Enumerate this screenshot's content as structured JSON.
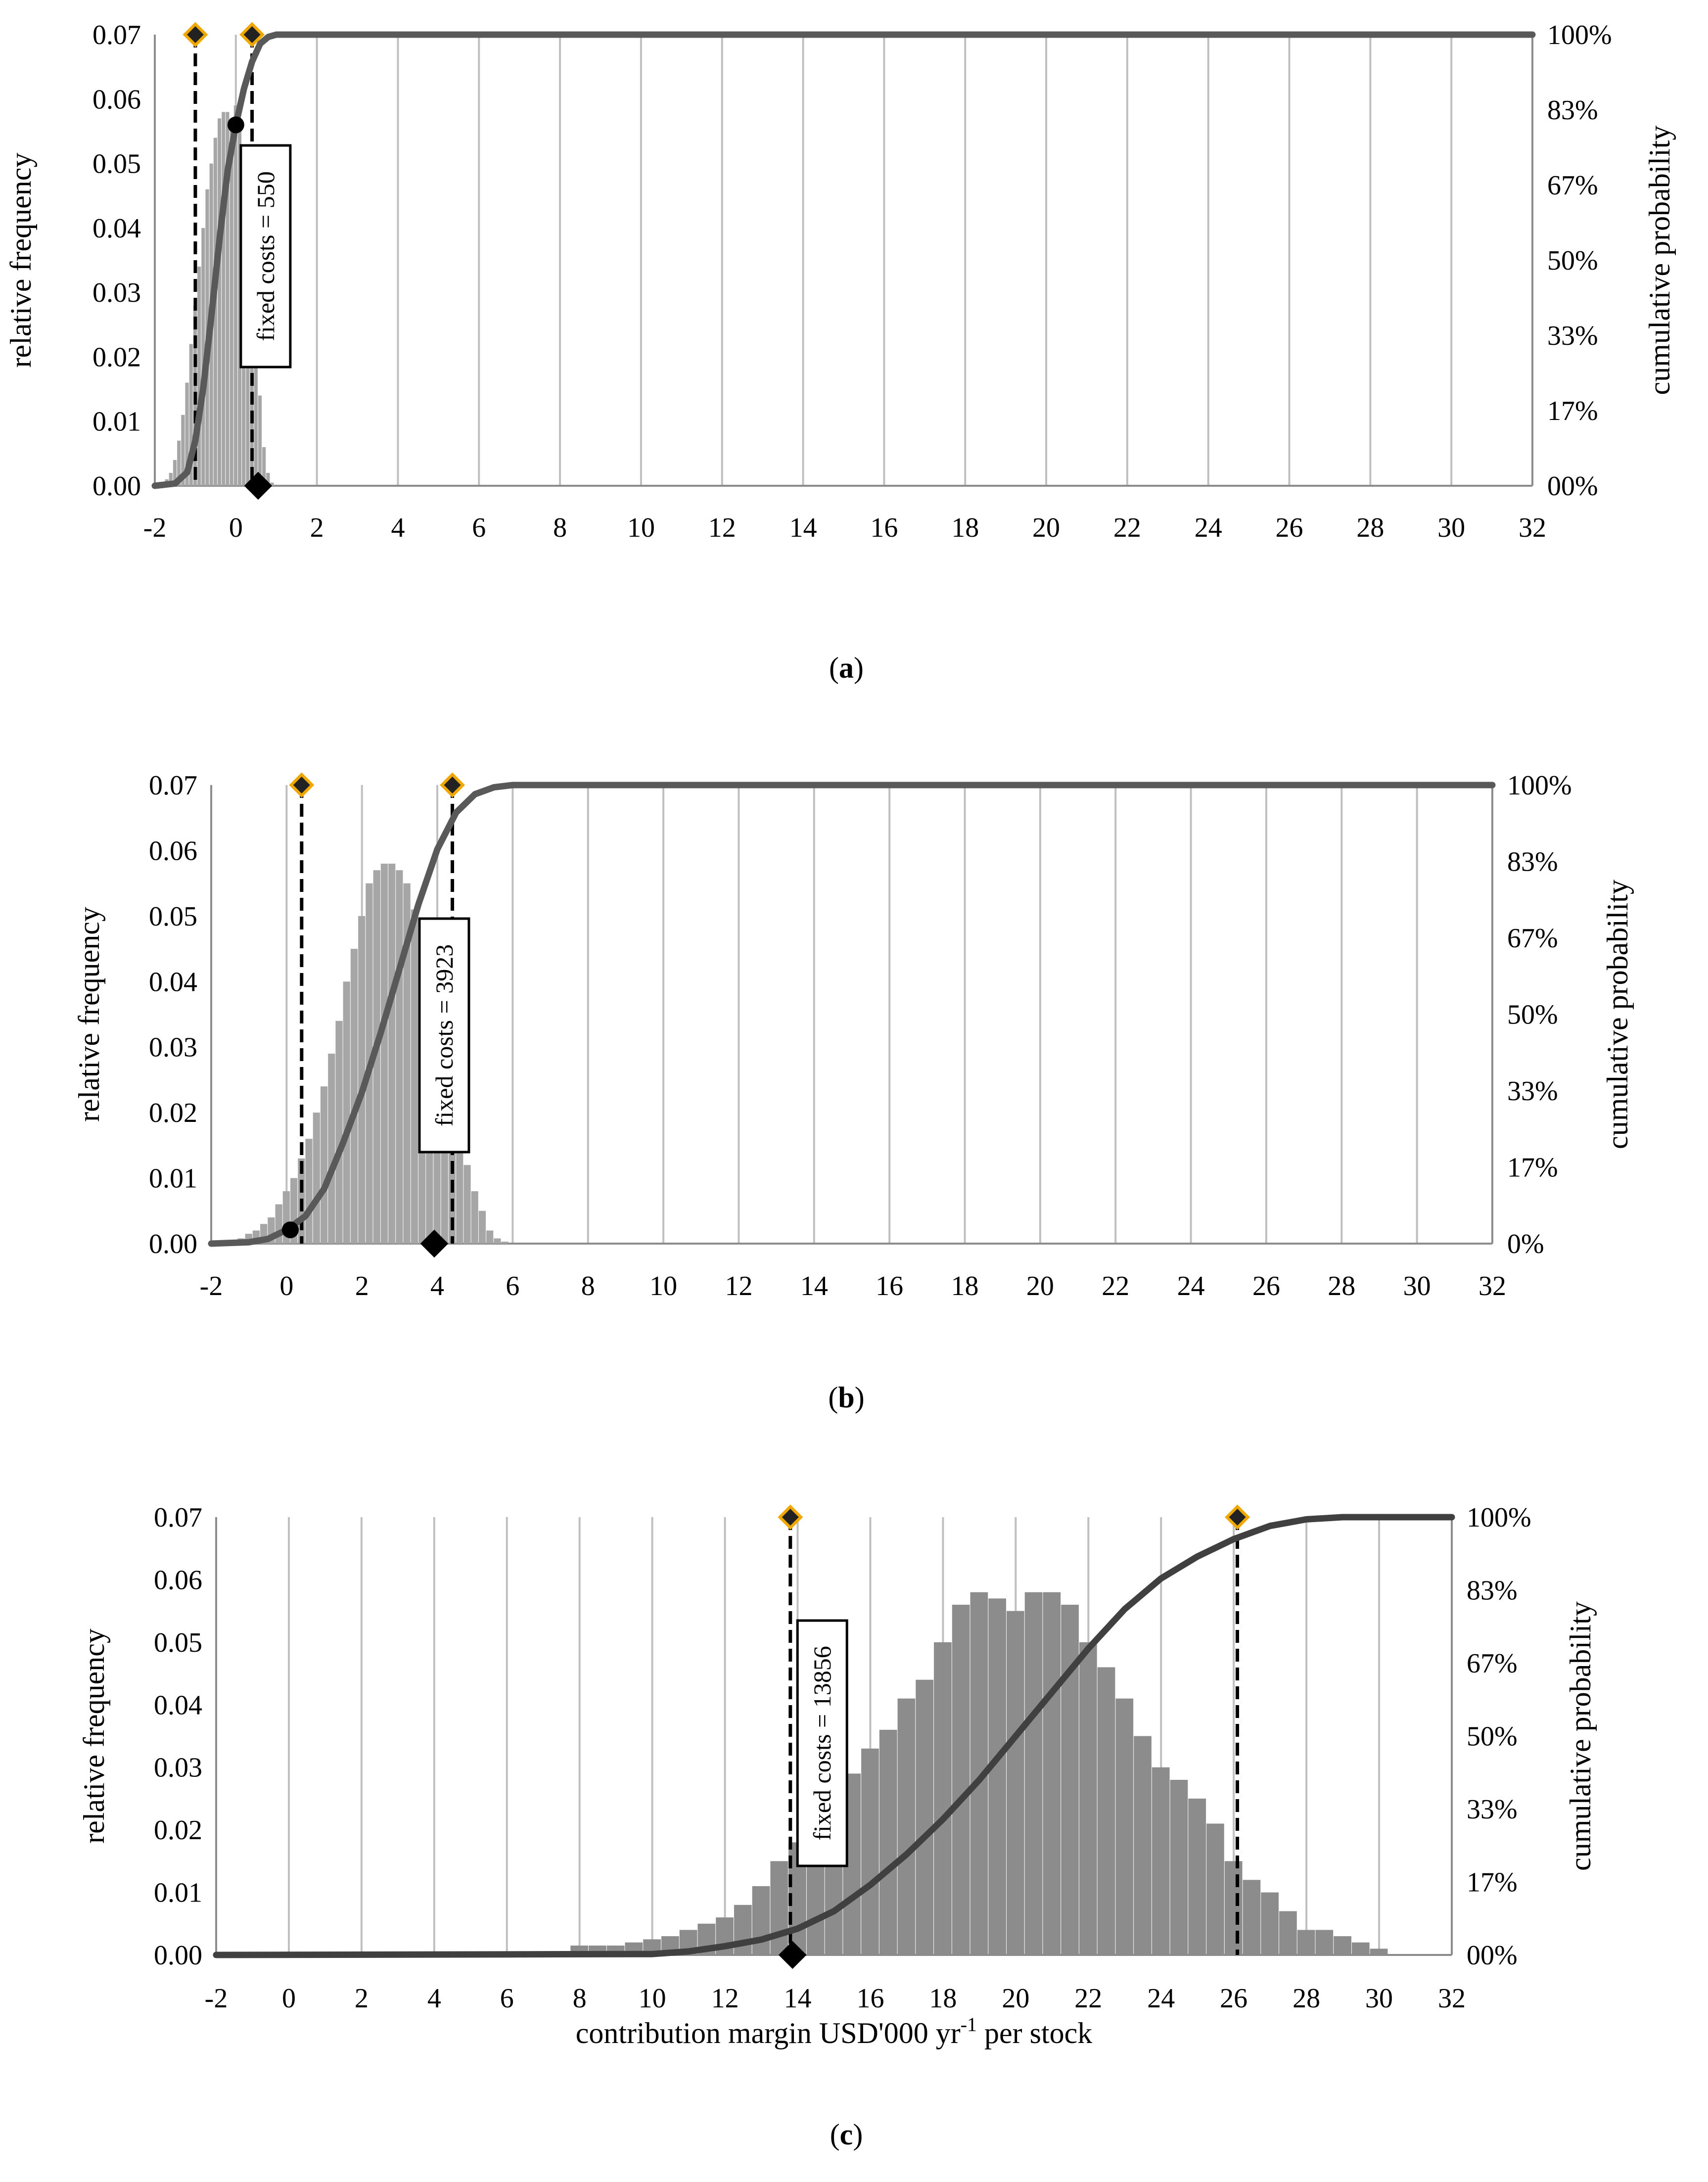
{
  "figure": {
    "left_axis_title": "relative frequency",
    "right_axis_title": "cumulative probability",
    "left_ticks": [
      "0.00",
      "0.01",
      "0.02",
      "0.03",
      "0.04",
      "0.05",
      "0.06",
      "0.07"
    ],
    "x_ticks": [
      "-2",
      "0",
      "2",
      "4",
      "6",
      "8",
      "10",
      "12",
      "14",
      "16",
      "18",
      "20",
      "22",
      "24",
      "26",
      "28",
      "30",
      "32"
    ]
  },
  "chart_data": [
    {
      "id": "a",
      "type": "bar",
      "caption": {
        "open": "(",
        "letter": "a",
        "close": ")"
      },
      "xlim": [
        -2,
        32
      ],
      "ylim": [
        0,
        0.07
      ],
      "right_ticks": [
        "00%",
        "17%",
        "33%",
        "50%",
        "67%",
        "83%",
        "100%"
      ],
      "xlabel": "",
      "bin_width": 0.1,
      "histogram": {
        "x": [
          -1.9,
          -1.7,
          -1.6,
          -1.5,
          -1.4,
          -1.3,
          -1.2,
          -1.1,
          -1.0,
          -0.9,
          -0.8,
          -0.7,
          -0.6,
          -0.5,
          -0.4,
          -0.3,
          -0.2,
          -0.1,
          0.0,
          0.1,
          0.2,
          0.3,
          0.4,
          0.5,
          0.6,
          0.7,
          0.8,
          0.9
        ],
        "values": [
          0.0005,
          0.001,
          0.002,
          0.004,
          0.007,
          0.011,
          0.016,
          0.022,
          0.028,
          0.034,
          0.04,
          0.046,
          0.05,
          0.054,
          0.057,
          0.058,
          0.058,
          0.057,
          0.059,
          0.056,
          0.052,
          0.045,
          0.035,
          0.024,
          0.014,
          0.006,
          0.002,
          0.0005
        ]
      },
      "cdf": {
        "x": [
          -2,
          -1.5,
          -1.2,
          -1.0,
          -0.8,
          -0.6,
          -0.4,
          -0.2,
          0.0,
          0.2,
          0.4,
          0.6,
          0.8,
          1.0,
          32
        ],
        "values": [
          0,
          0.005,
          0.03,
          0.1,
          0.22,
          0.38,
          0.55,
          0.7,
          0.8,
          0.88,
          0.94,
          0.98,
          0.995,
          1.0,
          1.0
        ]
      },
      "percentile_markers": [
        -1.0,
        0.4
      ],
      "dot": {
        "x": 0.0,
        "y": 0.8
      },
      "fixed_cost": {
        "label": "fixed costs = 550",
        "x": 0.55
      }
    },
    {
      "id": "b",
      "type": "bar",
      "caption": {
        "open": "(",
        "letter": "b",
        "close": ")"
      },
      "xlim": [
        -2,
        32
      ],
      "ylim": [
        0,
        0.07
      ],
      "right_ticks": [
        "0%",
        "17%",
        "33%",
        "50%",
        "67%",
        "83%",
        "100%"
      ],
      "xlabel": "",
      "bin_width": 0.2,
      "histogram": {
        "x": [
          -1.4,
          -1.2,
          -1.0,
          -0.8,
          -0.6,
          -0.4,
          -0.2,
          0.0,
          0.2,
          0.4,
          0.6,
          0.8,
          1.0,
          1.2,
          1.4,
          1.6,
          1.8,
          2.0,
          2.2,
          2.4,
          2.6,
          2.8,
          3.0,
          3.2,
          3.4,
          3.6,
          3.8,
          4.0,
          4.2,
          4.4,
          4.6,
          4.8,
          5.0,
          5.2,
          5.4,
          5.6,
          5.8
        ],
        "values": [
          0.0003,
          0.0008,
          0.0015,
          0.002,
          0.003,
          0.004,
          0.006,
          0.008,
          0.01,
          0.013,
          0.016,
          0.02,
          0.024,
          0.029,
          0.034,
          0.04,
          0.045,
          0.05,
          0.055,
          0.057,
          0.058,
          0.058,
          0.057,
          0.055,
          0.051,
          0.045,
          0.04,
          0.034,
          0.029,
          0.023,
          0.017,
          0.012,
          0.008,
          0.005,
          0.002,
          0.0008,
          0.0003
        ]
      },
      "cdf": {
        "x": [
          -2,
          -1,
          -0.5,
          0,
          0.5,
          1,
          1.5,
          2,
          2.5,
          3,
          3.5,
          4,
          4.5,
          5,
          5.5,
          6,
          32
        ],
        "values": [
          0,
          0.003,
          0.01,
          0.03,
          0.06,
          0.12,
          0.22,
          0.33,
          0.46,
          0.6,
          0.74,
          0.86,
          0.94,
          0.98,
          0.995,
          1.0,
          1.0
        ]
      },
      "percentile_markers": [
        0.4,
        4.4
      ],
      "dot": {
        "x": 0.1,
        "y": 0.03
      },
      "fixed_cost": {
        "label": "fixed costs = 3923",
        "x": 3.92
      }
    },
    {
      "id": "c",
      "type": "bar",
      "caption": {
        "open": "(",
        "letter": "c",
        "close": ")"
      },
      "xlim": [
        -2,
        32
      ],
      "ylim": [
        0,
        0.07
      ],
      "right_ticks": [
        "00%",
        "17%",
        "33%",
        "50%",
        "67%",
        "83%",
        "100%"
      ],
      "xlabel": {
        "pre": "contribution margin USD'000 yr",
        "sup": "-1",
        "post": " per stock"
      },
      "bin_width": 0.5,
      "histogram": {
        "x": [
          8.0,
          8.5,
          9.0,
          9.5,
          10.0,
          10.5,
          11.0,
          11.5,
          12.0,
          12.5,
          13.0,
          13.5,
          14.0,
          14.5,
          15.0,
          15.5,
          16.0,
          16.5,
          17.0,
          17.5,
          18.0,
          18.5,
          19.0,
          19.5,
          20.0,
          20.5,
          21.0,
          21.5,
          22.0,
          22.5,
          23.0,
          23.5,
          24.0,
          24.5,
          25.0,
          25.5,
          26.0,
          26.5,
          27.0,
          27.5,
          28.0,
          28.5,
          29.0,
          29.5,
          30.0
        ],
        "values": [
          0.0015,
          0.0015,
          0.0015,
          0.002,
          0.0025,
          0.003,
          0.004,
          0.005,
          0.006,
          0.008,
          0.011,
          0.015,
          0.018,
          0.022,
          0.029,
          0.029,
          0.033,
          0.036,
          0.041,
          0.044,
          0.05,
          0.056,
          0.058,
          0.057,
          0.055,
          0.058,
          0.058,
          0.056,
          0.05,
          0.046,
          0.041,
          0.035,
          0.03,
          0.028,
          0.025,
          0.021,
          0.015,
          0.012,
          0.01,
          0.007,
          0.004,
          0.004,
          0.003,
          0.002,
          0.001
        ]
      },
      "cdf": {
        "x": [
          -2,
          10,
          11,
          12,
          13,
          14,
          15,
          16,
          17,
          18,
          19,
          20,
          21,
          22,
          23,
          24,
          25,
          26,
          27,
          28,
          29,
          30,
          32
        ],
        "values": [
          0,
          0.002,
          0.008,
          0.02,
          0.035,
          0.06,
          0.1,
          0.16,
          0.23,
          0.31,
          0.4,
          0.5,
          0.6,
          0.7,
          0.79,
          0.86,
          0.91,
          0.95,
          0.98,
          0.995,
          1.0,
          1.0,
          1.0
        ]
      },
      "percentile_markers": [
        13.8,
        26.1
      ],
      "dot": null,
      "fixed_cost": {
        "label": "fixed costs = 13856",
        "x": 13.86
      }
    }
  ],
  "colors": {
    "bars": "#a6a6a6",
    "bars_dark": "#8c8c8c",
    "cdf_line": "#595959",
    "grid": "#bfbfbf",
    "marker_fill": "#222222",
    "marker_outline": "#f0a800"
  }
}
